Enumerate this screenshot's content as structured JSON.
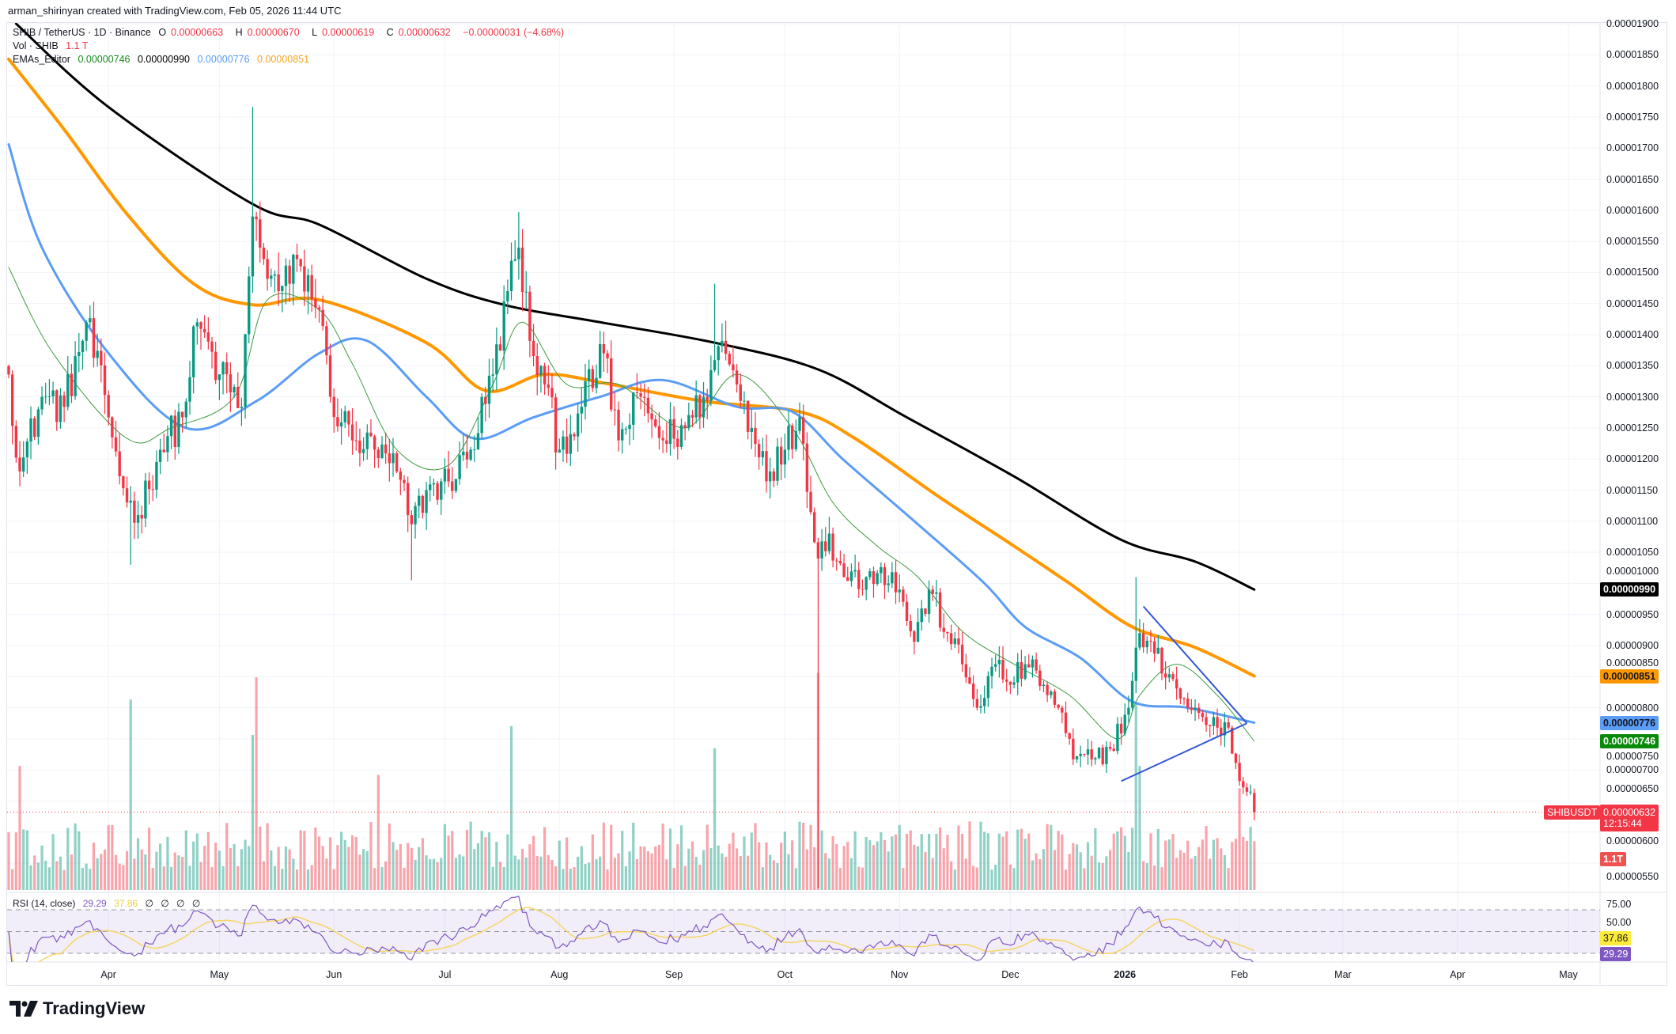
{
  "attribution": "arman_shirinyan created with TradingView.com, Feb 05, 2026 11:44 UTC",
  "legend": {
    "symbol": "SHIB / TetherUS · 1D · Binance",
    "open_label": "O",
    "open": "0.00000663",
    "high_label": "H",
    "high": "0.00000670",
    "low_label": "L",
    "low": "0.00000619",
    "close_label": "C",
    "close": "0.00000632",
    "change": "−0.00000031 (−4.68%)",
    "vol_label": "Vol · SHIB",
    "vol": "1.1 T",
    "ema_label": "EMAs_Editor",
    "ema_values": [
      "0.00000746",
      "0.00000990",
      "0.00000776",
      "0.00000851"
    ]
  },
  "price_axis": {
    "ticks": [
      "0.00001900",
      "0.00001850",
      "0.00001800",
      "0.00001750",
      "0.00001700",
      "0.00001650",
      "0.00001600",
      "0.00001550",
      "0.00001500",
      "0.00001450",
      "0.00001400",
      "0.00001350",
      "0.00001300",
      "0.00001250",
      "0.00001200",
      "0.00001150",
      "0.00001100",
      "0.00001050",
      "0.00001000",
      "0.00000950",
      "0.00000900",
      "0.00000850",
      "0.00000800",
      "0.00000750",
      "0.00000700",
      "0.00000650",
      "0.00000600",
      "0.00000550"
    ]
  },
  "badges": {
    "ema200": "0.00000990",
    "ema100": "0.00000851",
    "ema50": "0.00000776",
    "ema20": "0.00000746",
    "symbol_tag": "SHIBUSDT",
    "last_price": "0.00000632",
    "countdown": "12:15:44",
    "volume": "1.1T"
  },
  "time_axis": [
    {
      "label": "Apr",
      "date": "2025-04-01"
    },
    {
      "label": "May",
      "date": "2025-05-01"
    },
    {
      "label": "Jun",
      "date": "2025-06-01"
    },
    {
      "label": "Jul",
      "date": "2025-07-01"
    },
    {
      "label": "Aug",
      "date": "2025-08-01"
    },
    {
      "label": "Sep",
      "date": "2025-09-01"
    },
    {
      "label": "Oct",
      "date": "2025-10-01"
    },
    {
      "label": "Nov",
      "date": "2025-11-01"
    },
    {
      "label": "Dec",
      "date": "2025-12-01"
    },
    {
      "label": "2026",
      "date": "2026-01-01",
      "bold": true
    },
    {
      "label": "Feb",
      "date": "2026-02-01"
    },
    {
      "label": "Mar",
      "date": "2026-03-01"
    },
    {
      "label": "Apr",
      "date": "2026-04-01"
    },
    {
      "label": "May",
      "date": "2026-05-01"
    }
  ],
  "rsi": {
    "label": "RSI (14, close)",
    "value": "29.29",
    "ma": "37.86",
    "extra": [
      "∅",
      "∅",
      "∅",
      "∅"
    ],
    "ticks": [
      "75.00",
      "50.00"
    ],
    "band": [
      30,
      70
    ],
    "midline": 50
  },
  "logo": "TradingView",
  "colors": {
    "up": "#089981",
    "down": "#f23645",
    "ema200": "#000000",
    "ema100": "#ff9800",
    "ema50": "#5b9cf6",
    "ema20": "#3f9a3f",
    "rsi_line": "#7e57c2",
    "rsi_ma": "#f5d565",
    "triangle": "#2f55d4"
  },
  "chart_data": {
    "type": "candlestick",
    "symbol": "SHIBUSDT",
    "interval": "1D",
    "x_range": [
      "2025-03-05",
      "2026-05-15"
    ],
    "y_range": [
      5.3e-06,
      1.91e-05
    ],
    "grid": true,
    "closes": [
      [
        "2025-03-05",
        1.336e-05
      ],
      [
        "2025-03-08",
        1.18e-05
      ],
      [
        "2025-03-14",
        1.3e-05
      ],
      [
        "2025-03-20",
        1.284e-05
      ],
      [
        "2025-03-26",
        1.42e-05
      ],
      [
        "2025-04-01",
        1.267e-05
      ],
      [
        "2025-04-06",
        1.13e-05
      ],
      [
        "2025-04-09",
        1.11e-05
      ],
      [
        "2025-04-15",
        1.215e-05
      ],
      [
        "2025-04-21",
        1.267e-05
      ],
      [
        "2025-04-25",
        1.42e-05
      ],
      [
        "2025-05-01",
        1.336e-05
      ],
      [
        "2025-05-07",
        1.284e-05
      ],
      [
        "2025-05-10",
        1.59e-05
      ],
      [
        "2025-05-12",
        1.54e-05
      ],
      [
        "2025-05-17",
        1.47e-05
      ],
      [
        "2025-05-23",
        1.51e-05
      ],
      [
        "2025-05-28",
        1.44e-05
      ],
      [
        "2025-05-31",
        1.3e-05
      ],
      [
        "2025-06-06",
        1.23e-05
      ],
      [
        "2025-06-12",
        1.215e-05
      ],
      [
        "2025-06-18",
        1.18e-05
      ],
      [
        "2025-06-22",
        1.095e-05
      ],
      [
        "2025-06-26",
        1.15e-05
      ],
      [
        "2025-07-02",
        1.164e-05
      ],
      [
        "2025-07-08",
        1.215e-05
      ],
      [
        "2025-07-14",
        1.336e-05
      ],
      [
        "2025-07-18",
        1.47e-05
      ],
      [
        "2025-07-21",
        1.54e-05
      ],
      [
        "2025-07-24",
        1.39e-05
      ],
      [
        "2025-07-28",
        1.32e-05
      ],
      [
        "2025-08-01",
        1.215e-05
      ],
      [
        "2025-08-07",
        1.284e-05
      ],
      [
        "2025-08-13",
        1.37e-05
      ],
      [
        "2025-08-17",
        1.23e-05
      ],
      [
        "2025-08-23",
        1.3e-05
      ],
      [
        "2025-08-29",
        1.23e-05
      ],
      [
        "2025-09-04",
        1.25e-05
      ],
      [
        "2025-09-09",
        1.3e-05
      ],
      [
        "2025-09-14",
        1.39e-05
      ],
      [
        "2025-09-18",
        1.32e-05
      ],
      [
        "2025-09-22",
        1.25e-05
      ],
      [
        "2025-09-27",
        1.18e-05
      ],
      [
        "2025-10-01",
        1.215e-05
      ],
      [
        "2025-10-05",
        1.267e-05
      ],
      [
        "2025-10-10",
        1.04e-05
      ],
      [
        "2025-10-13",
        1.08e-05
      ],
      [
        "2025-10-17",
        1.01e-05
      ],
      [
        "2025-10-23",
        1.01e-05
      ],
      [
        "2025-10-27",
        1.026e-05
      ],
      [
        "2025-11-01",
        9.9e-06
      ],
      [
        "2025-11-05",
        9.06e-06
      ],
      [
        "2025-11-09",
        9.9e-06
      ],
      [
        "2025-11-14",
        9.2e-06
      ],
      [
        "2025-11-18",
        8.7e-06
      ],
      [
        "2025-11-22",
        8e-06
      ],
      [
        "2025-11-27",
        8.7e-06
      ],
      [
        "2025-12-01",
        8.37e-06
      ],
      [
        "2025-12-05",
        8.7e-06
      ],
      [
        "2025-12-10",
        8.37e-06
      ],
      [
        "2025-12-14",
        8e-06
      ],
      [
        "2025-12-18",
        7.17e-06
      ],
      [
        "2025-12-23",
        7.17e-06
      ],
      [
        "2025-12-28",
        7.34e-06
      ],
      [
        "2026-01-02",
        8e-06
      ],
      [
        "2026-01-05",
        9.2e-06
      ],
      [
        "2026-01-09",
        8.87e-06
      ],
      [
        "2026-01-13",
        8.54e-06
      ],
      [
        "2026-01-18",
        8e-06
      ],
      [
        "2026-01-22",
        7.85e-06
      ],
      [
        "2026-01-26",
        7.68e-06
      ],
      [
        "2026-01-29",
        7.68e-06
      ],
      [
        "2026-02-01",
        6.82e-06
      ],
      [
        "2026-02-04",
        6.65e-06
      ],
      [
        "2026-02-05",
        6.32e-06
      ]
    ],
    "last_candle": {
      "date": "2026-02-05",
      "open": 6.63e-06,
      "high": 6.7e-06,
      "low": 6.19e-06,
      "close": 6.32e-06
    },
    "notable_wicks": [
      {
        "date": "2025-04-07",
        "low": 1.03e-05
      },
      {
        "date": "2025-05-10",
        "high": 1.766e-05
      },
      {
        "date": "2025-06-22",
        "low": 1.005e-05
      },
      {
        "date": "2025-07-21",
        "high": 1.597e-05
      },
      {
        "date": "2025-09-12",
        "high": 1.482e-05
      },
      {
        "date": "2025-10-10",
        "low": 5.1e-06
      },
      {
        "date": "2026-01-04",
        "high": 1.01e-05
      }
    ],
    "volume_unit": "T",
    "volume_spikes": [
      [
        "2025-03-08",
        2.8
      ],
      [
        "2025-04-07",
        4.3
      ],
      [
        "2025-05-10",
        3.5
      ],
      [
        "2025-05-11",
        4.8
      ],
      [
        "2025-06-13",
        2.6
      ],
      [
        "2025-07-19",
        3.7
      ],
      [
        "2025-09-12",
        3.2
      ],
      [
        "2025-10-10",
        4.9
      ],
      [
        "2026-01-04",
        4.2
      ],
      [
        "2026-01-05",
        2.8
      ],
      [
        "2026-02-01",
        2.3
      ],
      [
        "2026-02-05",
        1.1
      ]
    ],
    "ema_series": [
      {
        "key": "ema200",
        "points": [
          [
            "2025-03-07",
            1.9e-05
          ],
          [
            "2025-04-01",
            1.766e-05
          ],
          [
            "2025-05-10",
            1.61e-05
          ],
          [
            "2025-05-28",
            1.577e-05
          ],
          [
            "2025-06-26",
            1.49e-05
          ],
          [
            "2025-07-17",
            1.448e-05
          ],
          [
            "2025-08-12",
            1.42e-05
          ],
          [
            "2025-09-12",
            1.387e-05
          ],
          [
            "2025-10-10",
            1.344e-05
          ],
          [
            "2025-11-03",
            1.267e-05
          ],
          [
            "2025-12-02",
            1.172e-05
          ],
          [
            "2025-12-31",
            1.07e-05
          ],
          [
            "2026-01-20",
            1.035e-05
          ],
          [
            "2026-02-05",
            9.9e-06
          ]
        ]
      },
      {
        "key": "ema100",
        "points": [
          [
            "2025-03-05",
            1.843e-05
          ],
          [
            "2025-03-20",
            1.73e-05
          ],
          [
            "2025-04-06",
            1.594e-05
          ],
          [
            "2025-04-24",
            1.482e-05
          ],
          [
            "2025-05-10",
            1.448e-05
          ],
          [
            "2025-05-28",
            1.456e-05
          ],
          [
            "2025-06-26",
            1.387e-05
          ],
          [
            "2025-07-12",
            1.31e-05
          ],
          [
            "2025-07-28",
            1.336e-05
          ],
          [
            "2025-08-15",
            1.32e-05
          ],
          [
            "2025-09-09",
            1.293e-05
          ],
          [
            "2025-10-05",
            1.276e-05
          ],
          [
            "2025-10-20",
            1.233e-05
          ],
          [
            "2025-11-12",
            1.138e-05
          ],
          [
            "2025-12-02",
            1.06e-05
          ],
          [
            "2025-12-17",
            1e-05
          ],
          [
            "2026-01-03",
            9.3e-06
          ],
          [
            "2026-01-20",
            8.97e-06
          ],
          [
            "2026-02-05",
            8.51e-06
          ]
        ]
      },
      {
        "key": "ema50",
        "points": [
          [
            "2025-03-05",
            1.706e-05
          ],
          [
            "2025-03-14",
            1.54e-05
          ],
          [
            "2025-04-01",
            1.37e-05
          ],
          [
            "2025-04-22",
            1.25e-05
          ],
          [
            "2025-05-11",
            1.293e-05
          ],
          [
            "2025-05-28",
            1.37e-05
          ],
          [
            "2025-06-10",
            1.39e-05
          ],
          [
            "2025-06-26",
            1.3e-05
          ],
          [
            "2025-07-09",
            1.233e-05
          ],
          [
            "2025-07-25",
            1.267e-05
          ],
          [
            "2025-08-12",
            1.3e-05
          ],
          [
            "2025-08-29",
            1.327e-05
          ],
          [
            "2025-09-18",
            1.284e-05
          ],
          [
            "2025-10-03",
            1.276e-05
          ],
          [
            "2025-10-17",
            1.198e-05
          ],
          [
            "2025-11-06",
            1.095e-05
          ],
          [
            "2025-11-24",
            1e-05
          ],
          [
            "2025-12-05",
            9.3e-06
          ],
          [
            "2025-12-20",
            8.8e-06
          ],
          [
            "2026-01-03",
            8.1e-06
          ],
          [
            "2026-01-18",
            8e-06
          ],
          [
            "2026-02-05",
            7.76e-06
          ]
        ]
      },
      {
        "key": "ema20",
        "points": [
          [
            "2025-03-05",
            1.508e-05
          ],
          [
            "2025-03-17",
            1.37e-05
          ],
          [
            "2025-04-06",
            1.233e-05
          ],
          [
            "2025-04-18",
            1.25e-05
          ],
          [
            "2025-05-05",
            1.3e-05
          ],
          [
            "2025-05-14",
            1.456e-05
          ],
          [
            "2025-05-28",
            1.44e-05
          ],
          [
            "2025-06-06",
            1.353e-05
          ],
          [
            "2025-06-18",
            1.215e-05
          ],
          [
            "2025-07-02",
            1.19e-05
          ],
          [
            "2025-07-14",
            1.32e-05
          ],
          [
            "2025-07-22",
            1.42e-05
          ],
          [
            "2025-08-03",
            1.32e-05
          ],
          [
            "2025-08-17",
            1.32e-05
          ],
          [
            "2025-09-04",
            1.25e-05
          ],
          [
            "2025-09-18",
            1.336e-05
          ],
          [
            "2025-10-03",
            1.25e-05
          ],
          [
            "2025-10-14",
            1.13e-05
          ],
          [
            "2025-10-26",
            1.06e-05
          ],
          [
            "2025-11-06",
            1.01e-05
          ],
          [
            "2025-11-18",
            9.23e-06
          ],
          [
            "2025-12-02",
            8.7e-06
          ],
          [
            "2025-12-17",
            8.2e-06
          ],
          [
            "2025-12-30",
            7.5e-06
          ],
          [
            "2026-01-05",
            8.2e-06
          ],
          [
            "2026-01-15",
            8.7e-06
          ],
          [
            "2026-01-26",
            8.2e-06
          ],
          [
            "2026-02-05",
            7.46e-06
          ]
        ]
      }
    ],
    "triangle": [
      [
        [
          "2025-12-31",
          6.82e-06
        ],
        [
          "2026-02-03",
          7.75e-06
        ]
      ],
      [
        [
          "2026-01-06",
          9.63e-06
        ],
        [
          "2026-02-03",
          7.75e-06
        ]
      ]
    ]
  }
}
